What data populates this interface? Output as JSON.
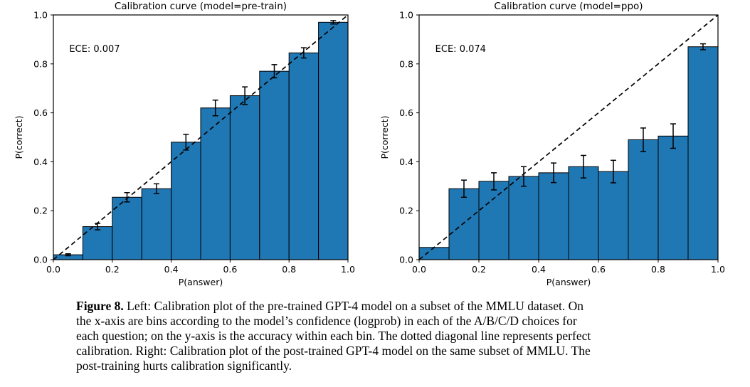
{
  "page": {
    "background": "#ffffff",
    "text_color": "#000000"
  },
  "caption": {
    "label": "Figure 8.",
    "lines": [
      "Left: Calibration plot of the pre-trained GPT-4 model on a subset of the MMLU dataset. On",
      "the x-axis are bins according to the model’s confidence (logprob) in each of the A/B/C/D choices for",
      "each question; on the y-axis is the accuracy within each bin. The dotted diagonal line represents perfect",
      "calibration. Right: Calibration plot of the post-trained GPT-4 model on the same subset of MMLU. The",
      "post-training hurts calibration significantly."
    ]
  },
  "chart_data": [
    {
      "type": "bar",
      "title": "Calibration curve (model=pre-train)",
      "annotation": "ECE: 0.007",
      "ece": 0.007,
      "xlabel": "P(answer)",
      "ylabel": "P(correct)",
      "xlim": [
        0.0,
        1.0
      ],
      "ylim": [
        0.0,
        1.0
      ],
      "x_ticks": [
        "0.0",
        "0.2",
        "0.4",
        "0.6",
        "0.8",
        "1.0"
      ],
      "y_ticks": [
        "0.0",
        "0.2",
        "0.4",
        "0.6",
        "0.8",
        "1.0"
      ],
      "bin_edges": [
        0.0,
        0.1,
        0.2,
        0.3,
        0.4,
        0.5,
        0.6,
        0.7,
        0.8,
        0.9,
        1.0
      ],
      "values": [
        0.02,
        0.135,
        0.255,
        0.29,
        0.48,
        0.62,
        0.67,
        0.77,
        0.845,
        0.97
      ],
      "errors": [
        0.004,
        0.013,
        0.019,
        0.02,
        0.032,
        0.032,
        0.036,
        0.027,
        0.021,
        0.007
      ],
      "diagonal_line": "perfect calibration",
      "bar_color": "#1f77b4",
      "bar_edge_color": "#000000",
      "grid": false,
      "legend": "none"
    },
    {
      "type": "bar",
      "title": "Calibration curve (model=ppo)",
      "annotation": "ECE: 0.074",
      "ece": 0.074,
      "xlabel": "P(answer)",
      "ylabel": "P(correct)",
      "xlim": [
        0.0,
        1.0
      ],
      "ylim": [
        0.0,
        1.0
      ],
      "x_ticks": [
        "0.0",
        "0.2",
        "0.4",
        "0.6",
        "0.8",
        "1.0"
      ],
      "y_ticks": [
        "0.0",
        "0.2",
        "0.4",
        "0.6",
        "0.8",
        "1.0"
      ],
      "bin_edges": [
        0.0,
        0.1,
        0.2,
        0.3,
        0.4,
        0.5,
        0.6,
        0.7,
        0.8,
        0.9,
        1.0
      ],
      "values": [
        0.05,
        0.29,
        0.32,
        0.34,
        0.355,
        0.38,
        0.36,
        0.49,
        0.505,
        0.87
      ],
      "errors": [
        0.0,
        0.035,
        0.035,
        0.04,
        0.04,
        0.046,
        0.046,
        0.048,
        0.05,
        0.012
      ],
      "diagonal_line": "perfect calibration",
      "bar_color": "#1f77b4",
      "bar_edge_color": "#000000",
      "grid": false,
      "legend": "none"
    }
  ]
}
